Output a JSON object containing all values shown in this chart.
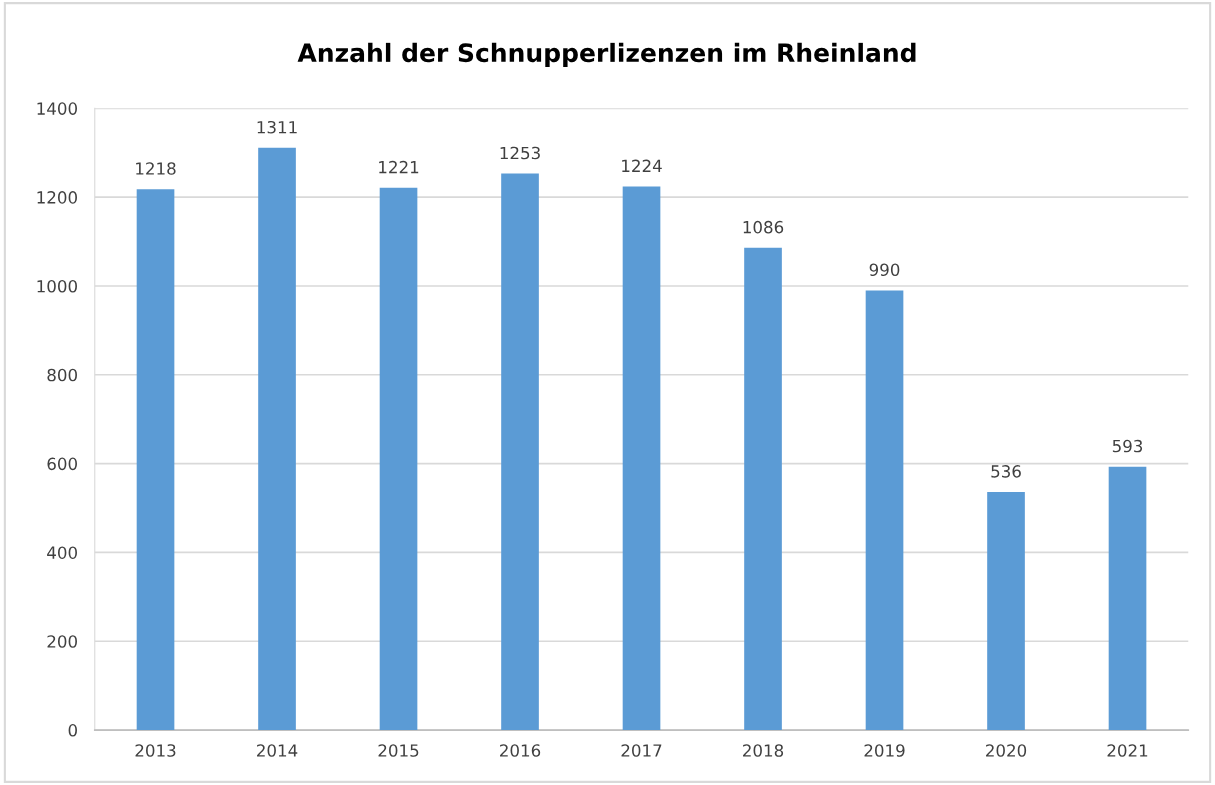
{
  "chart_data": {
    "type": "bar",
    "title": "Anzahl der Schnupperlizenzen im Rheinland",
    "categories": [
      "2013",
      "2014",
      "2015",
      "2016",
      "2017",
      "2018",
      "2019",
      "2020",
      "2021"
    ],
    "values": [
      1218,
      1311,
      1221,
      1253,
      1224,
      1086,
      990,
      536,
      593
    ],
    "color": "#5b9bd5",
    "ylim": [
      0,
      1400
    ],
    "yticks": [
      0,
      200,
      400,
      600,
      800,
      1000,
      1200,
      1400
    ],
    "grid": "y",
    "data_labels": true
  }
}
